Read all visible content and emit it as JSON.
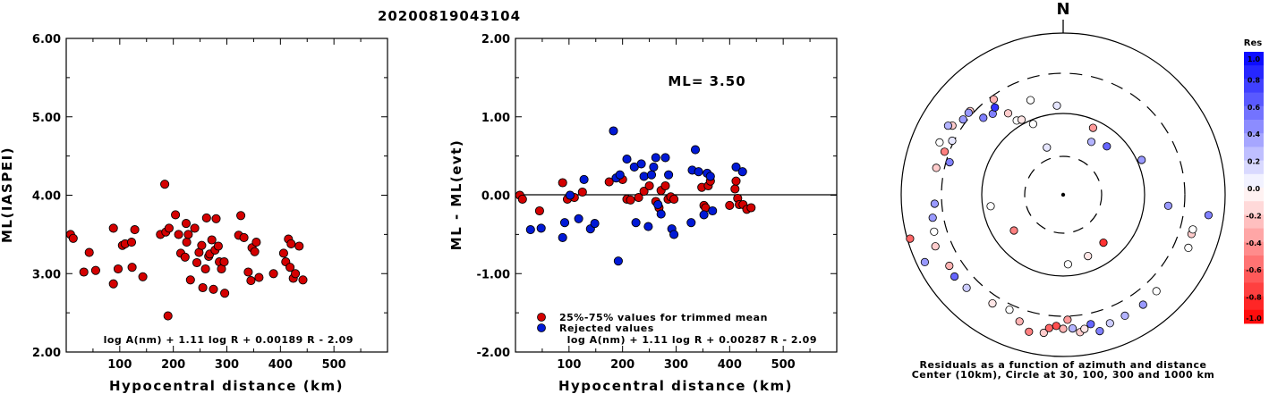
{
  "page": {
    "title": "20200819043104"
  },
  "colors": {
    "red": "#d40000",
    "blue": "#0019d6",
    "frame": "#000000"
  },
  "chart_data": [
    {
      "type": "scatter",
      "xlabel": "Hypocentral distance (km)",
      "ylabel": "ML(IASPEI)",
      "xlim": [
        0,
        600
      ],
      "ylim": [
        2.0,
        6.0
      ],
      "x_ticks": [
        "100",
        "200",
        "300",
        "400",
        "500"
      ],
      "y_ticks": [
        "2.00",
        "3.00",
        "4.00",
        "5.00",
        "6.00"
      ],
      "formula": "log A(nm) + 1.11 log R + 0.00189 R - 2.09",
      "series": [
        {
          "color": "red",
          "points": [
            [
              8,
              3.5
            ],
            [
              13,
              3.45
            ],
            [
              33,
              3.02
            ],
            [
              43,
              3.27
            ],
            [
              55,
              3.04
            ],
            [
              88,
              3.58
            ],
            [
              88,
              2.87
            ],
            [
              97,
              3.06
            ],
            [
              105,
              3.36
            ],
            [
              110,
              3.38
            ],
            [
              122,
              3.4
            ],
            [
              123,
              3.08
            ],
            [
              128,
              3.56
            ],
            [
              143,
              2.96
            ],
            [
              176,
              3.5
            ],
            [
              184,
              4.14
            ],
            [
              186,
              3.53
            ],
            [
              192,
              3.58
            ],
            [
              190,
              2.46
            ],
            [
              204,
              3.75
            ],
            [
              210,
              3.5
            ],
            [
              214,
              3.26
            ],
            [
              222,
              3.21
            ],
            [
              224,
              3.64
            ],
            [
              225,
              3.4
            ],
            [
              228,
              3.5
            ],
            [
              232,
              2.92
            ],
            [
              240,
              3.58
            ],
            [
              244,
              3.14
            ],
            [
              248,
              3.27
            ],
            [
              253,
              3.36
            ],
            [
              255,
              2.82
            ],
            [
              260,
              3.06
            ],
            [
              262,
              3.71
            ],
            [
              266,
              3.22
            ],
            [
              268,
              3.25
            ],
            [
              272,
              3.43
            ],
            [
              275,
              2.8
            ],
            [
              278,
              3.3
            ],
            [
              280,
              3.7
            ],
            [
              284,
              3.35
            ],
            [
              286,
              3.15
            ],
            [
              290,
              3.06
            ],
            [
              295,
              3.15
            ],
            [
              296,
              2.75
            ],
            [
              322,
              3.49
            ],
            [
              326,
              3.74
            ],
            [
              332,
              3.46
            ],
            [
              340,
              3.02
            ],
            [
              345,
              2.91
            ],
            [
              347,
              3.33
            ],
            [
              352,
              3.28
            ],
            [
              355,
              3.4
            ],
            [
              360,
              2.95
            ],
            [
              387,
              3.0
            ],
            [
              406,
              3.26
            ],
            [
              410,
              3.15
            ],
            [
              415,
              3.44
            ],
            [
              418,
              3.08
            ],
            [
              420,
              3.38
            ],
            [
              424,
              2.94
            ],
            [
              428,
              3.0
            ],
            [
              435,
              3.35
            ],
            [
              442,
              2.92
            ]
          ]
        }
      ]
    },
    {
      "type": "scatter",
      "xlabel": "Hypocentral distance (km)",
      "ylabel": "ML - ML(evt)",
      "xlim": [
        0,
        600
      ],
      "ylim": [
        -2.0,
        2.0
      ],
      "x_ticks": [
        "100",
        "200",
        "300",
        "400",
        "500"
      ],
      "y_ticks": [
        "-2.00",
        "-1.00",
        "0.00",
        "1.00",
        "2.00"
      ],
      "reference_line": 0.0,
      "annotation": "ML= 3.50",
      "formula": "log A(nm) + 1.11 log R + 0.00287 R - 2.09",
      "legend": {
        "position": "bottom-left",
        "entries": [
          "25%-75% values for trimmed mean",
          "Rejected values"
        ]
      },
      "series": [
        {
          "color": "red",
          "legend_index": 0,
          "points": [
            [
              8,
              0.0
            ],
            [
              13,
              -0.05
            ],
            [
              45,
              -0.2
            ],
            [
              88,
              0.16
            ],
            [
              97,
              -0.05
            ],
            [
              110,
              -0.03
            ],
            [
              125,
              0.04
            ],
            [
              175,
              0.17
            ],
            [
              200,
              0.2
            ],
            [
              208,
              -0.05
            ],
            [
              215,
              -0.06
            ],
            [
              230,
              -0.03
            ],
            [
              240,
              0.05
            ],
            [
              250,
              0.12
            ],
            [
              262,
              -0.08
            ],
            [
              268,
              -0.16
            ],
            [
              272,
              0.06
            ],
            [
              280,
              0.12
            ],
            [
              285,
              -0.05
            ],
            [
              290,
              -0.02
            ],
            [
              296,
              -0.05
            ],
            [
              348,
              0.1
            ],
            [
              352,
              -0.13
            ],
            [
              355,
              -0.16
            ],
            [
              360,
              0.12
            ],
            [
              364,
              0.18
            ],
            [
              400,
              -0.13
            ],
            [
              410,
              0.08
            ],
            [
              412,
              0.18
            ],
            [
              415,
              -0.04
            ],
            [
              418,
              -0.12
            ],
            [
              425,
              -0.12
            ],
            [
              432,
              -0.18
            ],
            [
              440,
              -0.16
            ]
          ]
        },
        {
          "color": "blue",
          "legend_index": 1,
          "points": [
            [
              28,
              -0.44
            ],
            [
              48,
              -0.42
            ],
            [
              88,
              -0.54
            ],
            [
              92,
              -0.35
            ],
            [
              102,
              0.0
            ],
            [
              118,
              -0.3
            ],
            [
              128,
              0.2
            ],
            [
              140,
              -0.43
            ],
            [
              148,
              -0.36
            ],
            [
              183,
              0.82
            ],
            [
              188,
              0.22
            ],
            [
              192,
              -0.84
            ],
            [
              195,
              0.26
            ],
            [
              208,
              0.46
            ],
            [
              222,
              0.36
            ],
            [
              225,
              -0.35
            ],
            [
              235,
              0.4
            ],
            [
              240,
              0.24
            ],
            [
              248,
              -0.4
            ],
            [
              254,
              0.26
            ],
            [
              258,
              0.36
            ],
            [
              262,
              0.48
            ],
            [
              266,
              -0.12
            ],
            [
              272,
              -0.24
            ],
            [
              280,
              0.48
            ],
            [
              286,
              0.26
            ],
            [
              292,
              -0.43
            ],
            [
              296,
              -0.5
            ],
            [
              328,
              -0.35
            ],
            [
              330,
              0.32
            ],
            [
              336,
              0.58
            ],
            [
              342,
              0.3
            ],
            [
              352,
              -0.25
            ],
            [
              358,
              0.28
            ],
            [
              364,
              0.24
            ],
            [
              368,
              -0.2
            ],
            [
              412,
              0.36
            ],
            [
              424,
              0.3
            ]
          ]
        }
      ]
    },
    {
      "type": "polar-scatter",
      "north_label": "N",
      "caption_line1": "Residuals as a function of azimuth and distance",
      "caption_line2": "Center (10km), Circle at 30, 100, 300 and 1000 km",
      "colorbar": {
        "title": "Res",
        "ticks": [
          "1.0",
          "0.8",
          "0.6",
          "0.4",
          "0.2",
          "0.0",
          "-0.2",
          "-0.4",
          "-0.6",
          "-0.8",
          "-1.0"
        ],
        "range": [
          -1.0,
          1.0
        ]
      },
      "stations": [
        [
          140,
          -0.8
        ],
        [
          158,
          -0.1
        ],
        [
          176,
          0.0
        ],
        [
          234,
          -0.5
        ],
        [
          261,
          0.0
        ],
        [
          312,
          -0.2
        ],
        [
          328,
          0.0
        ],
        [
          341,
          0.0
        ],
        [
          24,
          -0.4
        ],
        [
          28,
          0.3
        ],
        [
          42,
          0.6
        ],
        [
          66,
          0.4
        ],
        [
          282,
          -0.2
        ],
        [
          290,
          -0.5
        ],
        [
          296,
          0.1
        ],
        [
          302,
          -0.2
        ],
        [
          307,
          0.4
        ],
        [
          311,
          0.4
        ],
        [
          314,
          0.5
        ],
        [
          319,
          0.5
        ],
        [
          322,
          0.8
        ],
        [
          326,
          -0.2
        ],
        [
          331,
          -0.1
        ],
        [
          337,
          0.0
        ],
        [
          341,
          0.1
        ],
        [
          286,
          0.5
        ],
        [
          293,
          0.0
        ],
        [
          301,
          0.3
        ],
        [
          324,
          -0.3
        ],
        [
          356,
          0.1
        ],
        [
          248,
          -0.2
        ],
        [
          254,
          0.0
        ],
        [
          260,
          0.4
        ],
        [
          266,
          0.4
        ],
        [
          238,
          -0.3
        ],
        [
          233,
          0.6
        ],
        [
          226,
          0.2
        ],
        [
          213,
          -0.1
        ],
        [
          205,
          0.0
        ],
        [
          199,
          -0.3
        ],
        [
          194,
          -0.5
        ],
        [
          188,
          -0.2
        ],
        [
          186,
          -0.6
        ],
        [
          183,
          -0.7
        ],
        [
          180,
          -0.3
        ],
        [
          178,
          -0.4
        ],
        [
          176,
          0.3
        ],
        [
          173,
          -0.2
        ],
        [
          171,
          -0.1
        ],
        [
          168,
          0.6
        ],
        [
          165,
          0.5
        ],
        [
          160,
          0.2
        ],
        [
          153,
          0.3
        ],
        [
          144,
          0.4
        ],
        [
          136,
          0.0
        ],
        [
          113,
          0.0
        ],
        [
          107,
          -0.2
        ],
        [
          105,
          0.0
        ],
        [
          254,
          -0.6
        ],
        [
          244,
          0.4
        ],
        [
          96,
          0.4
        ],
        [
          98,
          0.5
        ]
      ]
    }
  ]
}
